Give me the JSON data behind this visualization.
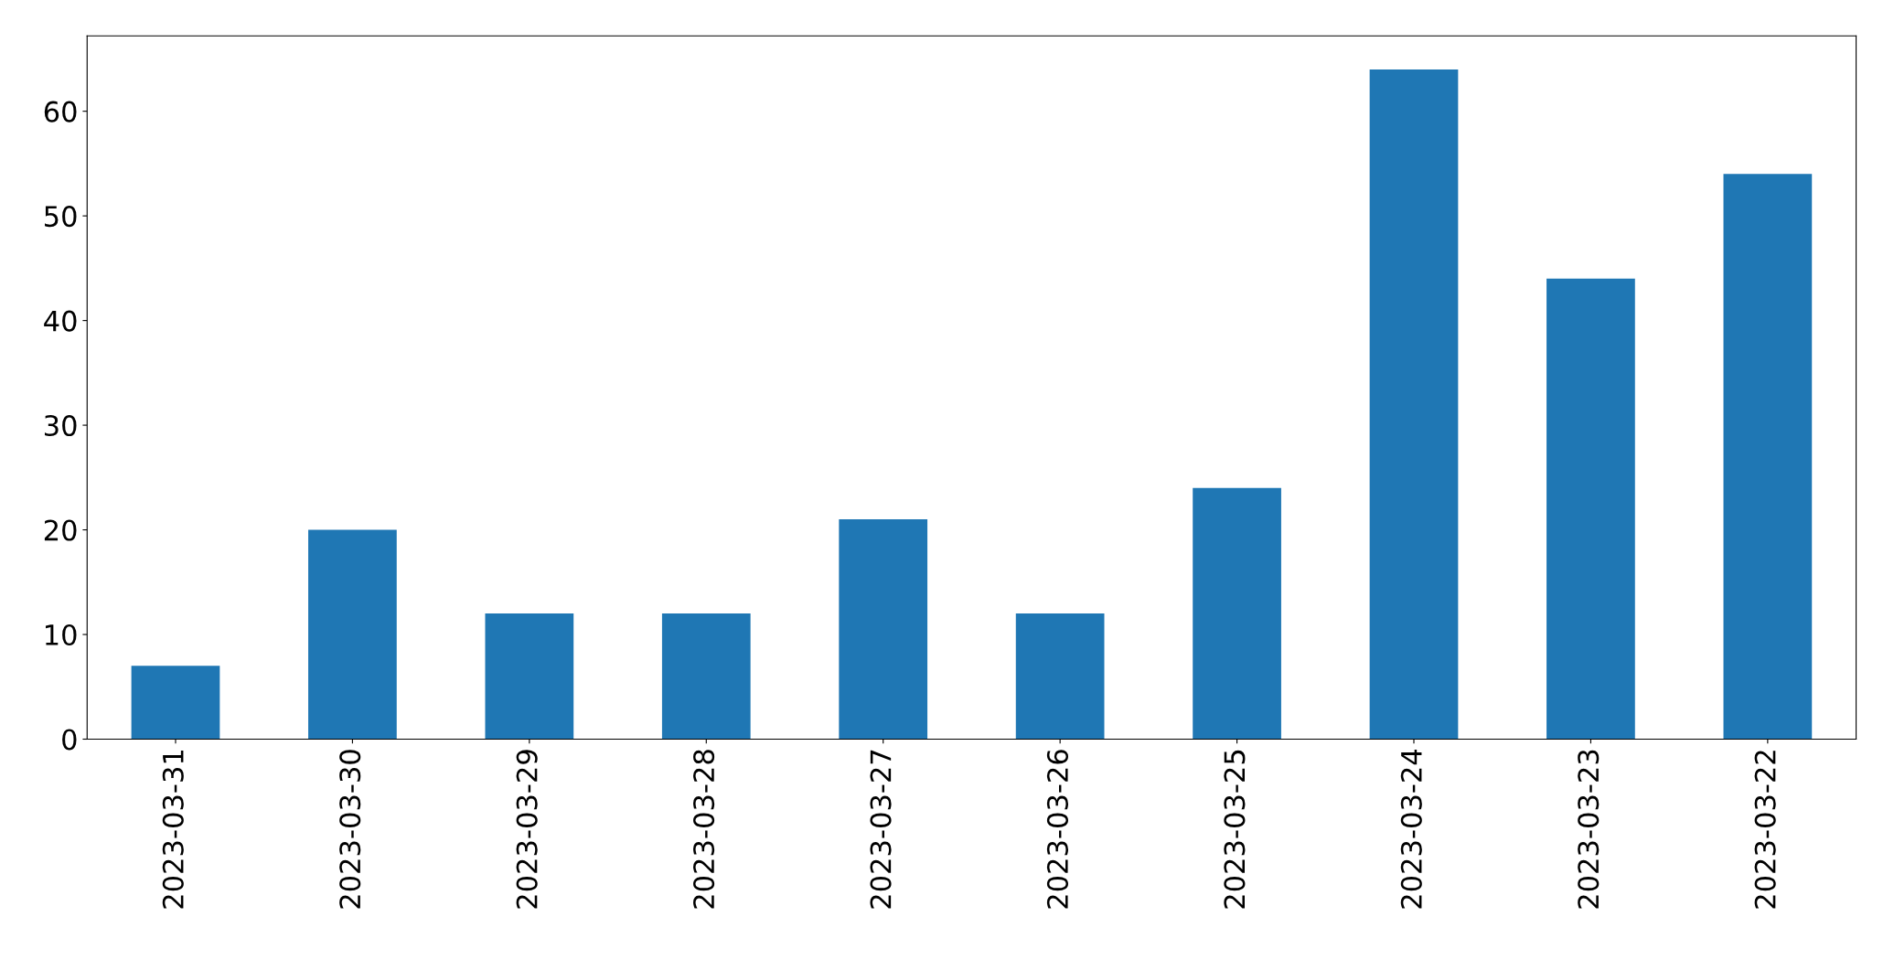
{
  "chart_data": {
    "type": "bar",
    "categories": [
      "2023-03-31",
      "2023-03-30",
      "2023-03-29",
      "2023-03-28",
      "2023-03-27",
      "2023-03-26",
      "2023-03-25",
      "2023-03-24",
      "2023-03-23",
      "2023-03-22"
    ],
    "values": [
      7,
      20,
      12,
      12,
      21,
      12,
      24,
      64,
      44,
      54
    ],
    "color": "#1f77b4",
    "ylim": [
      0,
      67.2
    ],
    "yticks": [
      0,
      10,
      20,
      30,
      40,
      50,
      60
    ],
    "grid": false,
    "legend": false
  }
}
